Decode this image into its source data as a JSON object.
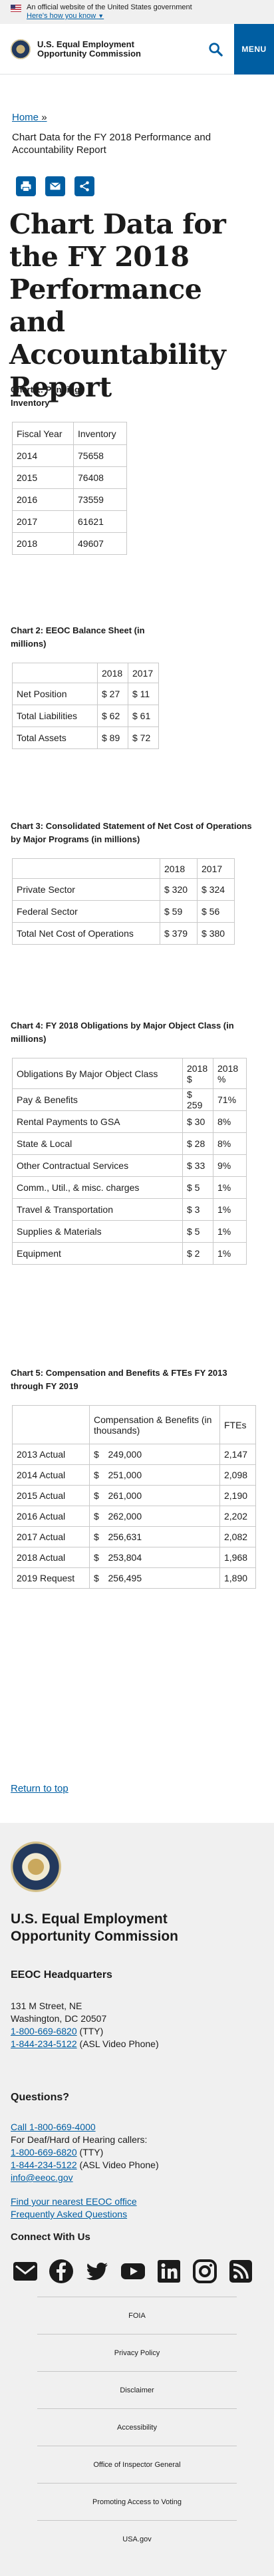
{
  "banner": {
    "official": "An official website of the United States government",
    "how": "Here's how you know"
  },
  "header": {
    "agency_line1": "U.S. Equal Employment",
    "agency_line2": "Opportunity Commission",
    "menu_label": "MENU"
  },
  "breadcrumb": {
    "home": "Home",
    "separator": "»",
    "current": "Chart Data for the FY 2018 Performance and Accountability Report"
  },
  "page_title": "Chart Data for the FY 2018 Performance and Accountability Report",
  "chart1": {
    "title": "Chart 1: Pending Inventory",
    "headers": [
      "Fiscal Year",
      "Inventory"
    ],
    "rows": [
      [
        "2014",
        "75658"
      ],
      [
        "2015",
        "76408"
      ],
      [
        "2016",
        "73559"
      ],
      [
        "2017",
        "61621"
      ],
      [
        "2018",
        "49607"
      ]
    ]
  },
  "chart2": {
    "title": "Chart 2: EEOC Balance Sheet (in millions)",
    "headers": [
      "",
      "2018",
      "2017"
    ],
    "rows": [
      [
        "Net Position",
        "$ 27",
        "$ 11"
      ],
      [
        "Total Liabilities",
        "$ 62",
        "$ 61"
      ],
      [
        "Total Assets",
        "$ 89",
        "$ 72"
      ]
    ]
  },
  "chart3": {
    "title": "Chart 3: Consolidated Statement of Net Cost of Operations by Major Programs (in millions)",
    "headers": [
      "",
      "2018",
      "2017"
    ],
    "rows": [
      [
        "Private Sector",
        "$ 320",
        "$ 324"
      ],
      [
        "Federal Sector",
        "$ 59",
        "$ 56"
      ],
      [
        "Total Net Cost of Operations",
        "$ 379",
        "$ 380"
      ]
    ]
  },
  "chart4": {
    "title": "Chart 4: FY 2018 Obligations by Major Object Class (in millions)",
    "headers": [
      "Obligations By Major Object Class",
      "2018 $",
      "2018 %"
    ],
    "rows": [
      [
        "Pay & Benefits",
        "$ 259",
        "71%"
      ],
      [
        "Rental Payments to GSA",
        "$ 30",
        "8%"
      ],
      [
        "State & Local",
        "$ 28",
        "8%"
      ],
      [
        "Other Contractual Services",
        "$ 33",
        "9%"
      ],
      [
        "Comm., Util., & misc. charges",
        "$ 5",
        "1%"
      ],
      [
        "Travel & Transportation",
        "$ 3",
        "1%"
      ],
      [
        "Supplies & Materials",
        "$ 5",
        "1%"
      ],
      [
        "Equipment",
        "$ 2",
        "1%"
      ]
    ]
  },
  "chart5": {
    "title": "Chart 5: Compensation and Benefits & FTEs FY 2013 through FY 2019",
    "headers": [
      "",
      "Compensation & Benefits (in thousands)",
      "FTEs"
    ],
    "rows": [
      [
        "2013 Actual",
        "$",
        "249,000",
        "2,147"
      ],
      [
        "2014 Actual",
        "$",
        "251,000",
        "2,098"
      ],
      [
        "2015 Actual",
        "$",
        "261,000",
        "2,190"
      ],
      [
        "2016 Actual",
        "$",
        "262,000",
        "2,202"
      ],
      [
        "2017 Actual",
        "$",
        "256,631",
        "2,082"
      ],
      [
        "2018 Actual",
        "$",
        "253,804",
        "1,968"
      ],
      [
        "2019 Request",
        "$",
        "256,495",
        "1,890"
      ]
    ]
  },
  "return_top": "Return to top",
  "footer": {
    "agency_line1": "U.S. Equal Employment",
    "agency_line2": "Opportunity Commission",
    "hq_title": "EEOC Headquarters",
    "address1": "131 M Street, NE",
    "address2": "Washington, DC 20507",
    "tty_number": "1-800-669-6820",
    "tty_label": "(TTY)",
    "asl_number": "1-844-234-5122",
    "asl_label": "(ASL Video Phone)",
    "questions_title": "Questions?",
    "call_link": "Call 1-800-669-4000",
    "deaf_line": "For Deaf/Hard of Hearing callers:",
    "email": "info@eeoc.gov",
    "find_office": "Find your nearest EEOC office",
    "faq": "Frequently Asked Questions",
    "connect_title": "Connect With Us",
    "links": [
      "FOIA",
      "Privacy Policy",
      "Disclaimer",
      "Accessibility",
      "Office of Inspector General",
      "Promoting Access to Voting",
      "USA.gov"
    ]
  },
  "colors": {
    "primary_blue": "#005ea2",
    "footer_bg": "#f0f0f0",
    "banner_bg": "#f0f0f0"
  }
}
